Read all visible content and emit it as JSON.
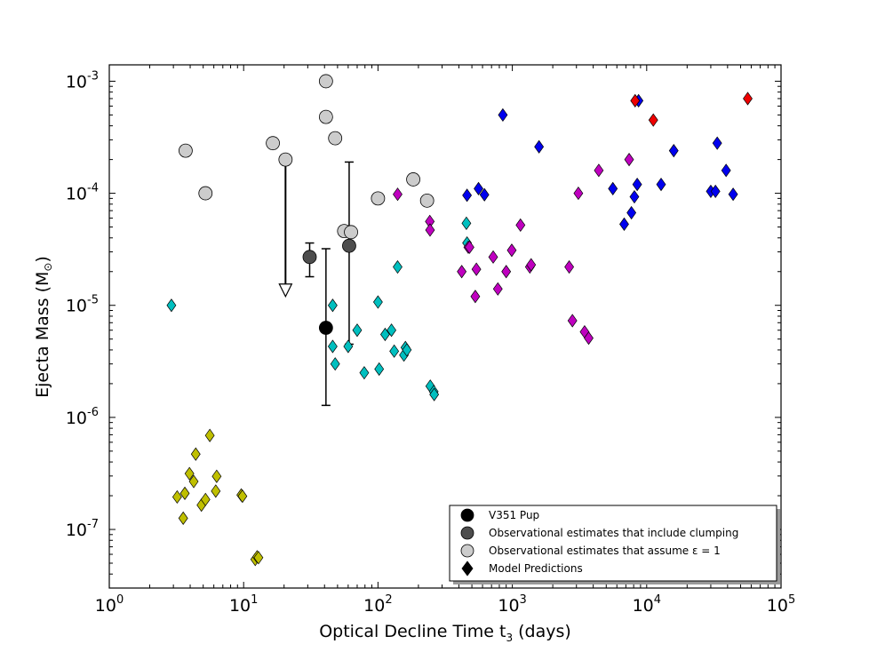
{
  "chart_data": {
    "type": "scatter",
    "xscale": "log",
    "yscale": "log",
    "xlim": [
      1,
      100000
    ],
    "ylim": [
      3e-08,
      0.0014
    ],
    "xlabel_main": "Optical Decline Time t",
    "xlabel_sub": "3",
    "xlabel_units": " (days)",
    "ylabel_main": "Ejecta Mass (M",
    "ylabel_sym": "⊙",
    "ylabel_close": ")",
    "xticks": [
      {
        "value": 1,
        "base": "10",
        "exp": "0"
      },
      {
        "value": 10,
        "base": "10",
        "exp": "1"
      },
      {
        "value": 100,
        "base": "10",
        "exp": "2"
      },
      {
        "value": 1000,
        "base": "10",
        "exp": "3"
      },
      {
        "value": 10000,
        "base": "10",
        "exp": "4"
      },
      {
        "value": 100000,
        "base": "10",
        "exp": "5"
      }
    ],
    "yticks": [
      {
        "value": 1e-07,
        "base": "10",
        "exp": "-7"
      },
      {
        "value": 1e-06,
        "base": "10",
        "exp": "-6"
      },
      {
        "value": 1e-05,
        "base": "10",
        "exp": "-5"
      },
      {
        "value": 0.0001,
        "base": "10",
        "exp": "-4"
      },
      {
        "value": 0.001,
        "base": "10",
        "exp": "-3"
      }
    ],
    "colors": {
      "v351": "#000000",
      "clumping": "#4d4d4d",
      "epsilon": "#cccccc",
      "yellow": "#bfbf00",
      "cyan": "#00bfbf",
      "magenta": "#bf00bf",
      "blue": "#0000ee",
      "red": "#ee0000",
      "legend_marker": "#000000"
    },
    "legend": {
      "position": "lower-right",
      "entries": [
        {
          "label": "V351 Pup",
          "marker": "circle",
          "color_key": "v351"
        },
        {
          "label": "Observational estimates that include clumping",
          "marker": "circle",
          "color_key": "clumping"
        },
        {
          "label": "Observational estimates that assume ε = 1",
          "marker": "circle",
          "color_key": "epsilon"
        },
        {
          "label": "Model Predictions",
          "marker": "diamond",
          "color_key": "legend_marker"
        }
      ]
    },
    "series": [
      {
        "name": "V351 Pup",
        "marker": "circle",
        "color_key": "v351",
        "points": [
          [
            41,
            6.3e-06
          ]
        ],
        "errorbars": [
          {
            "x": 41,
            "ylow": 1.28e-06,
            "yhigh": 3.2e-05
          }
        ]
      },
      {
        "name": "Observational estimates that include clumping",
        "marker": "circle",
        "color_key": "clumping",
        "points": [
          [
            31,
            2.7e-05
          ],
          [
            61,
            3.4e-05
          ]
        ],
        "errorbars": [
          {
            "x": 31,
            "ylow": 1.8e-05,
            "yhigh": 3.6e-05
          },
          {
            "x": 61,
            "ylow": 4.5e-06,
            "yhigh": 0.00019
          }
        ]
      },
      {
        "name": "Observational estimates that assume ε = 1",
        "marker": "circle",
        "color_key": "epsilon",
        "points": [
          [
            3.7,
            0.00024
          ],
          [
            5.2,
            0.0001
          ],
          [
            16.5,
            0.00028
          ],
          [
            20.5,
            0.0002
          ],
          [
            41,
            0.001
          ],
          [
            41,
            0.00048
          ],
          [
            48,
            0.00031
          ],
          [
            56,
            4.6e-05
          ],
          [
            63,
            4.5e-05
          ],
          [
            100,
            9e-05
          ],
          [
            183,
            0.000133
          ],
          [
            232,
            8.6e-05
          ]
        ],
        "upper_limits": [
          {
            "x": 20.5,
            "from": 0.0002,
            "to": 1.2e-05
          }
        ]
      },
      {
        "name": "Model Predictions (yellow)",
        "marker": "diamond",
        "color_key": "yellow",
        "points": [
          [
            3.2,
            1.95e-07
          ],
          [
            3.55,
            1.26e-07
          ],
          [
            3.65,
            2.1e-07
          ],
          [
            3.95,
            3.15e-07
          ],
          [
            4.25,
            2.68e-07
          ],
          [
            4.4,
            4.7e-07
          ],
          [
            4.85,
            1.65e-07
          ],
          [
            5.2,
            1.85e-07
          ],
          [
            5.6,
            6.9e-07
          ],
          [
            6.2,
            2.2e-07
          ],
          [
            6.3,
            2.98e-07
          ],
          [
            9.6,
            2.03e-07
          ],
          [
            9.8,
            1.98e-07
          ],
          [
            12.2,
            5.4e-08
          ],
          [
            12.6,
            5.7e-08
          ],
          [
            12.9,
            5.6e-08
          ]
        ]
      },
      {
        "name": "Model Predictions (cyan)",
        "marker": "diamond",
        "color_key": "cyan",
        "points": [
          [
            2.9,
            1e-05
          ],
          [
            46,
            1e-05
          ],
          [
            46,
            4.3e-06
          ],
          [
            48,
            3e-06
          ],
          [
            60,
            4.3e-06
          ],
          [
            70,
            6e-06
          ],
          [
            79,
            2.5e-06
          ],
          [
            100,
            1.07e-05
          ],
          [
            102,
            2.7e-06
          ],
          [
            113,
            5.5e-06
          ],
          [
            126,
            6e-06
          ],
          [
            132,
            3.9e-06
          ],
          [
            140,
            2.2e-05
          ],
          [
            156,
            3.6e-06
          ],
          [
            160,
            4.2e-06
          ],
          [
            164,
            4e-06
          ],
          [
            245,
            1.9e-06
          ],
          [
            260,
            1.7e-06
          ],
          [
            262,
            1.6e-06
          ],
          [
            455,
            5.4e-05
          ],
          [
            460,
            3.6e-05
          ]
        ]
      },
      {
        "name": "Model Predictions (magenta)",
        "marker": "diamond",
        "color_key": "magenta",
        "points": [
          [
            140,
            9.8e-05
          ],
          [
            243,
            5.6e-05
          ],
          [
            244,
            4.7e-05
          ],
          [
            420,
            2e-05
          ],
          [
            470,
            3.3e-05
          ],
          [
            480,
            3.3e-05
          ],
          [
            530,
            1.2e-05
          ],
          [
            540,
            2.1e-05
          ],
          [
            720,
            2.7e-05
          ],
          [
            780,
            1.4e-05
          ],
          [
            900,
            2e-05
          ],
          [
            990,
            3.1e-05
          ],
          [
            1150,
            5.2e-05
          ],
          [
            1350,
            2.2e-05
          ],
          [
            1380,
            2.3e-05
          ],
          [
            2650,
            2.2e-05
          ],
          [
            2800,
            7.3e-06
          ],
          [
            3100,
            0.0001
          ],
          [
            3450,
            5.8e-06
          ],
          [
            3700,
            5.1e-06
          ],
          [
            4400,
            0.00016
          ],
          [
            7400,
            0.0002
          ]
        ]
      },
      {
        "name": "Model Predictions (blue)",
        "marker": "diamond",
        "color_key": "blue",
        "points": [
          [
            460,
            9.6e-05
          ],
          [
            560,
            0.00011
          ],
          [
            620,
            9.7e-05
          ],
          [
            850,
            0.0005
          ],
          [
            1580,
            0.00026
          ],
          [
            5600,
            0.00011
          ],
          [
            6800,
            5.3e-05
          ],
          [
            7700,
            6.7e-05
          ],
          [
            8100,
            9.3e-05
          ],
          [
            8500,
            0.00012
          ],
          [
            8700,
            0.00067
          ],
          [
            12800,
            0.00012
          ],
          [
            15900,
            0.00024
          ],
          [
            30000,
            0.000104
          ],
          [
            32500,
            0.000104
          ],
          [
            33500,
            0.00028
          ],
          [
            39000,
            0.00016
          ],
          [
            44000,
            9.8e-05
          ]
        ]
      },
      {
        "name": "Model Predictions (red)",
        "marker": "diamond",
        "color_key": "red",
        "points": [
          [
            8200,
            0.00067
          ],
          [
            11200,
            0.00045
          ],
          [
            56500,
            0.0007
          ]
        ]
      }
    ]
  }
}
